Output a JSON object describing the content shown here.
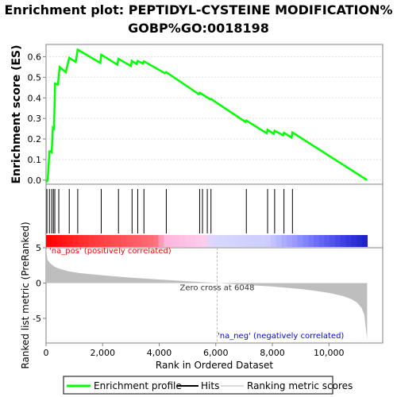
{
  "chart_data": {
    "type": "line",
    "title_line1": "Enrichment plot: PEPTIDYL-CYSTEINE MODIFICATION%",
    "title_line2": "GOBP%GO:0018198",
    "es_ylabel": "Enrichment score (ES)",
    "rank_ylabel": "Ranked list metric (PreRanked)",
    "xlabel": "Rank in Ordered Dataset",
    "es_yticks": [
      "0.0",
      "0.1",
      "0.2",
      "0.3",
      "0.4",
      "0.5",
      "0.6"
    ],
    "es_ylim": [
      -0.02,
      0.66
    ],
    "rank_yticks": [
      "5",
      "0",
      "-5"
    ],
    "rank_ylim": [
      -8.5,
      5
    ],
    "xticks": [
      "0",
      "2,000",
      "4,000",
      "6,000",
      "8,000",
      "10,000"
    ],
    "xlim": [
      0,
      11900
    ],
    "n_genes": 11350,
    "es_curve": {
      "x": [
        0,
        30,
        60,
        120,
        150,
        200,
        240,
        280,
        320,
        420,
        480,
        700,
        820,
        1050,
        1120,
        1920,
        1950,
        2520,
        2560,
        3000,
        3030,
        3200,
        3240,
        3420,
        3460,
        4200,
        4250,
        5400,
        5430,
        5800,
        5830,
        7050,
        7080,
        7800,
        7830,
        8050,
        8080,
        8380,
        8410,
        8680,
        8710,
        11350
      ],
      "y": [
        0.0,
        -0.005,
        0.0,
        0.14,
        0.14,
        0.135,
        0.255,
        0.25,
        0.47,
        0.465,
        0.55,
        0.525,
        0.595,
        0.575,
        0.635,
        0.57,
        0.61,
        0.562,
        0.59,
        0.555,
        0.58,
        0.565,
        0.58,
        0.567,
        0.578,
        0.52,
        0.525,
        0.418,
        0.425,
        0.393,
        0.395,
        0.283,
        0.29,
        0.228,
        0.245,
        0.225,
        0.24,
        0.218,
        0.23,
        0.207,
        0.232,
        0.0
      ]
    },
    "hits": [
      30,
      120,
      200,
      260,
      310,
      450,
      820,
      1120,
      1950,
      2560,
      3040,
      3240,
      3460,
      4250,
      5430,
      5530,
      5700,
      5830,
      7080,
      7830,
      8080,
      8410,
      8710
    ],
    "ranked_metric": {
      "x": [
        0,
        50,
        150,
        300,
        500,
        800,
        1200,
        2000,
        3000,
        4000,
        5000,
        6048,
        7000,
        8000,
        9000,
        9500,
        10000,
        10500,
        10800,
        11000,
        11150,
        11250,
        11350
      ],
      "y": [
        5.0,
        3.3,
        2.8,
        2.3,
        2.0,
        1.65,
        1.4,
        1.1,
        0.75,
        0.5,
        0.25,
        0.0,
        -0.25,
        -0.5,
        -0.85,
        -1.1,
        -1.4,
        -1.85,
        -2.3,
        -2.8,
        -3.5,
        -4.5,
        -8.0
      ]
    },
    "zero_cross_label": "Zero cross at 6048",
    "zero_cross_x": 6048,
    "pos_label": "'na_pos' (positively correlated)",
    "neg_label": "'na_neg' (negatively correlated)",
    "legend": [
      "Enrichment profile",
      "Hits",
      "Ranking metric scores"
    ],
    "colors": {
      "es_line": "#00ff00",
      "hits": "#000000",
      "metric_fill": "#bebebe",
      "pos_text": "#ff0000",
      "neg_text": "#0000ff",
      "zero_line": "#bebebe",
      "heatmap": [
        "#ff0000",
        "#ff5656",
        "#ffb3d9",
        "#d9d9ff",
        "#b3b3ff",
        "#7070ff",
        "#3030e0"
      ]
    }
  }
}
